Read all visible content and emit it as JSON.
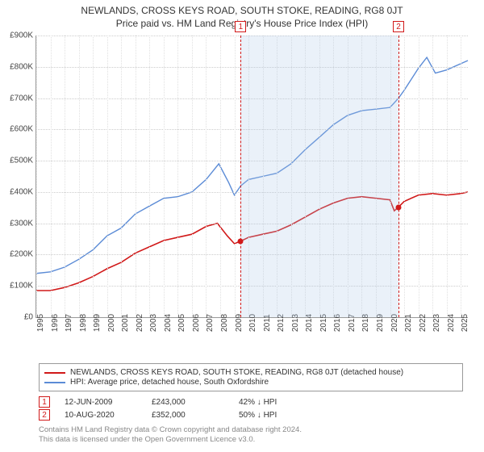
{
  "title": {
    "main": "NEWLANDS, CROSS KEYS ROAD, SOUTH STOKE, READING, RG8 0JT",
    "sub": "Price paid vs. HM Land Registry's House Price Index (HPI)"
  },
  "chart": {
    "type": "line",
    "background_color": "#ffffff",
    "grid_color": "#cccccc",
    "ylim": [
      0,
      900000
    ],
    "ytick_step": 100000,
    "ytick_prefix": "£",
    "ytick_suffix": "K",
    "xlim": [
      1995,
      2025.5
    ],
    "xticks": [
      1995,
      1996,
      1997,
      1998,
      1999,
      2000,
      2001,
      2002,
      2003,
      2004,
      2005,
      2006,
      2007,
      2008,
      2009,
      2010,
      2011,
      2012,
      2013,
      2014,
      2015,
      2016,
      2017,
      2018,
      2019,
      2020,
      2021,
      2022,
      2023,
      2024,
      2025
    ],
    "band": {
      "start": 2009.45,
      "end": 2020.6,
      "fill": "rgba(173,200,230,0.25)"
    },
    "series": [
      {
        "id": "property",
        "label": "NEWLANDS, CROSS KEYS ROAD, SOUTH STOKE, READING, RG8 0JT (detached house)",
        "color": "#d11919",
        "line_width": 1.6,
        "points": [
          [
            1995.0,
            85000
          ],
          [
            1996.0,
            85000
          ],
          [
            1997.0,
            95000
          ],
          [
            1998.0,
            110000
          ],
          [
            1999.0,
            130000
          ],
          [
            2000.0,
            155000
          ],
          [
            2001.0,
            175000
          ],
          [
            2002.0,
            205000
          ],
          [
            2003.0,
            225000
          ],
          [
            2004.0,
            245000
          ],
          [
            2005.0,
            255000
          ],
          [
            2006.0,
            265000
          ],
          [
            2007.0,
            290000
          ],
          [
            2007.8,
            300000
          ],
          [
            2008.5,
            260000
          ],
          [
            2009.0,
            235000
          ],
          [
            2009.45,
            243000
          ],
          [
            2010.0,
            255000
          ],
          [
            2011.0,
            265000
          ],
          [
            2012.0,
            275000
          ],
          [
            2013.0,
            295000
          ],
          [
            2014.0,
            320000
          ],
          [
            2015.0,
            345000
          ],
          [
            2016.0,
            365000
          ],
          [
            2017.0,
            380000
          ],
          [
            2018.0,
            385000
          ],
          [
            2019.0,
            380000
          ],
          [
            2020.0,
            375000
          ],
          [
            2020.3,
            340000
          ],
          [
            2020.6,
            352000
          ],
          [
            2021.0,
            370000
          ],
          [
            2022.0,
            390000
          ],
          [
            2023.0,
            395000
          ],
          [
            2024.0,
            390000
          ],
          [
            2025.0,
            395000
          ],
          [
            2025.5,
            400000
          ]
        ]
      },
      {
        "id": "hpi",
        "label": "HPI: Average price, detached house, South Oxfordshire",
        "color": "#5b8bd6",
        "line_width": 1.4,
        "points": [
          [
            1995.0,
            140000
          ],
          [
            1996.0,
            145000
          ],
          [
            1997.0,
            160000
          ],
          [
            1998.0,
            185000
          ],
          [
            1999.0,
            215000
          ],
          [
            2000.0,
            260000
          ],
          [
            2001.0,
            285000
          ],
          [
            2002.0,
            330000
          ],
          [
            2003.0,
            355000
          ],
          [
            2004.0,
            380000
          ],
          [
            2005.0,
            385000
          ],
          [
            2006.0,
            400000
          ],
          [
            2007.0,
            440000
          ],
          [
            2007.9,
            490000
          ],
          [
            2008.6,
            430000
          ],
          [
            2009.0,
            390000
          ],
          [
            2009.45,
            420000
          ],
          [
            2010.0,
            440000
          ],
          [
            2011.0,
            450000
          ],
          [
            2012.0,
            460000
          ],
          [
            2013.0,
            490000
          ],
          [
            2014.0,
            535000
          ],
          [
            2015.0,
            575000
          ],
          [
            2016.0,
            615000
          ],
          [
            2017.0,
            645000
          ],
          [
            2018.0,
            660000
          ],
          [
            2019.0,
            665000
          ],
          [
            2020.0,
            670000
          ],
          [
            2020.6,
            700000
          ],
          [
            2021.0,
            725000
          ],
          [
            2022.0,
            795000
          ],
          [
            2022.6,
            830000
          ],
          [
            2023.2,
            780000
          ],
          [
            2024.0,
            790000
          ],
          [
            2025.0,
            810000
          ],
          [
            2025.5,
            820000
          ]
        ]
      }
    ],
    "markers": [
      {
        "n": "1",
        "x": 2009.45,
        "y": 243000,
        "color": "#d11919"
      },
      {
        "n": "2",
        "x": 2020.6,
        "y": 352000,
        "color": "#d11919"
      }
    ],
    "vlines": [
      {
        "x": 2009.45,
        "color": "#d11919"
      },
      {
        "x": 2020.6,
        "color": "#d11919"
      }
    ]
  },
  "legend": {
    "rows": [
      {
        "color": "#d11919",
        "label": "NEWLANDS, CROSS KEYS ROAD, SOUTH STOKE, READING, RG8 0JT (detached house)"
      },
      {
        "color": "#5b8bd6",
        "label": "HPI: Average price, detached house, South Oxfordshire"
      }
    ]
  },
  "notes": {
    "rows": [
      {
        "n": "1",
        "color": "#d11919",
        "date": "12-JUN-2009",
        "price": "£243,000",
        "delta": "42% ↓ HPI"
      },
      {
        "n": "2",
        "color": "#d11919",
        "date": "10-AUG-2020",
        "price": "£352,000",
        "delta": "50% ↓ HPI"
      }
    ]
  },
  "footer": {
    "l1": "Contains HM Land Registry data © Crown copyright and database right 2024.",
    "l2": "This data is licensed under the Open Government Licence v3.0."
  }
}
